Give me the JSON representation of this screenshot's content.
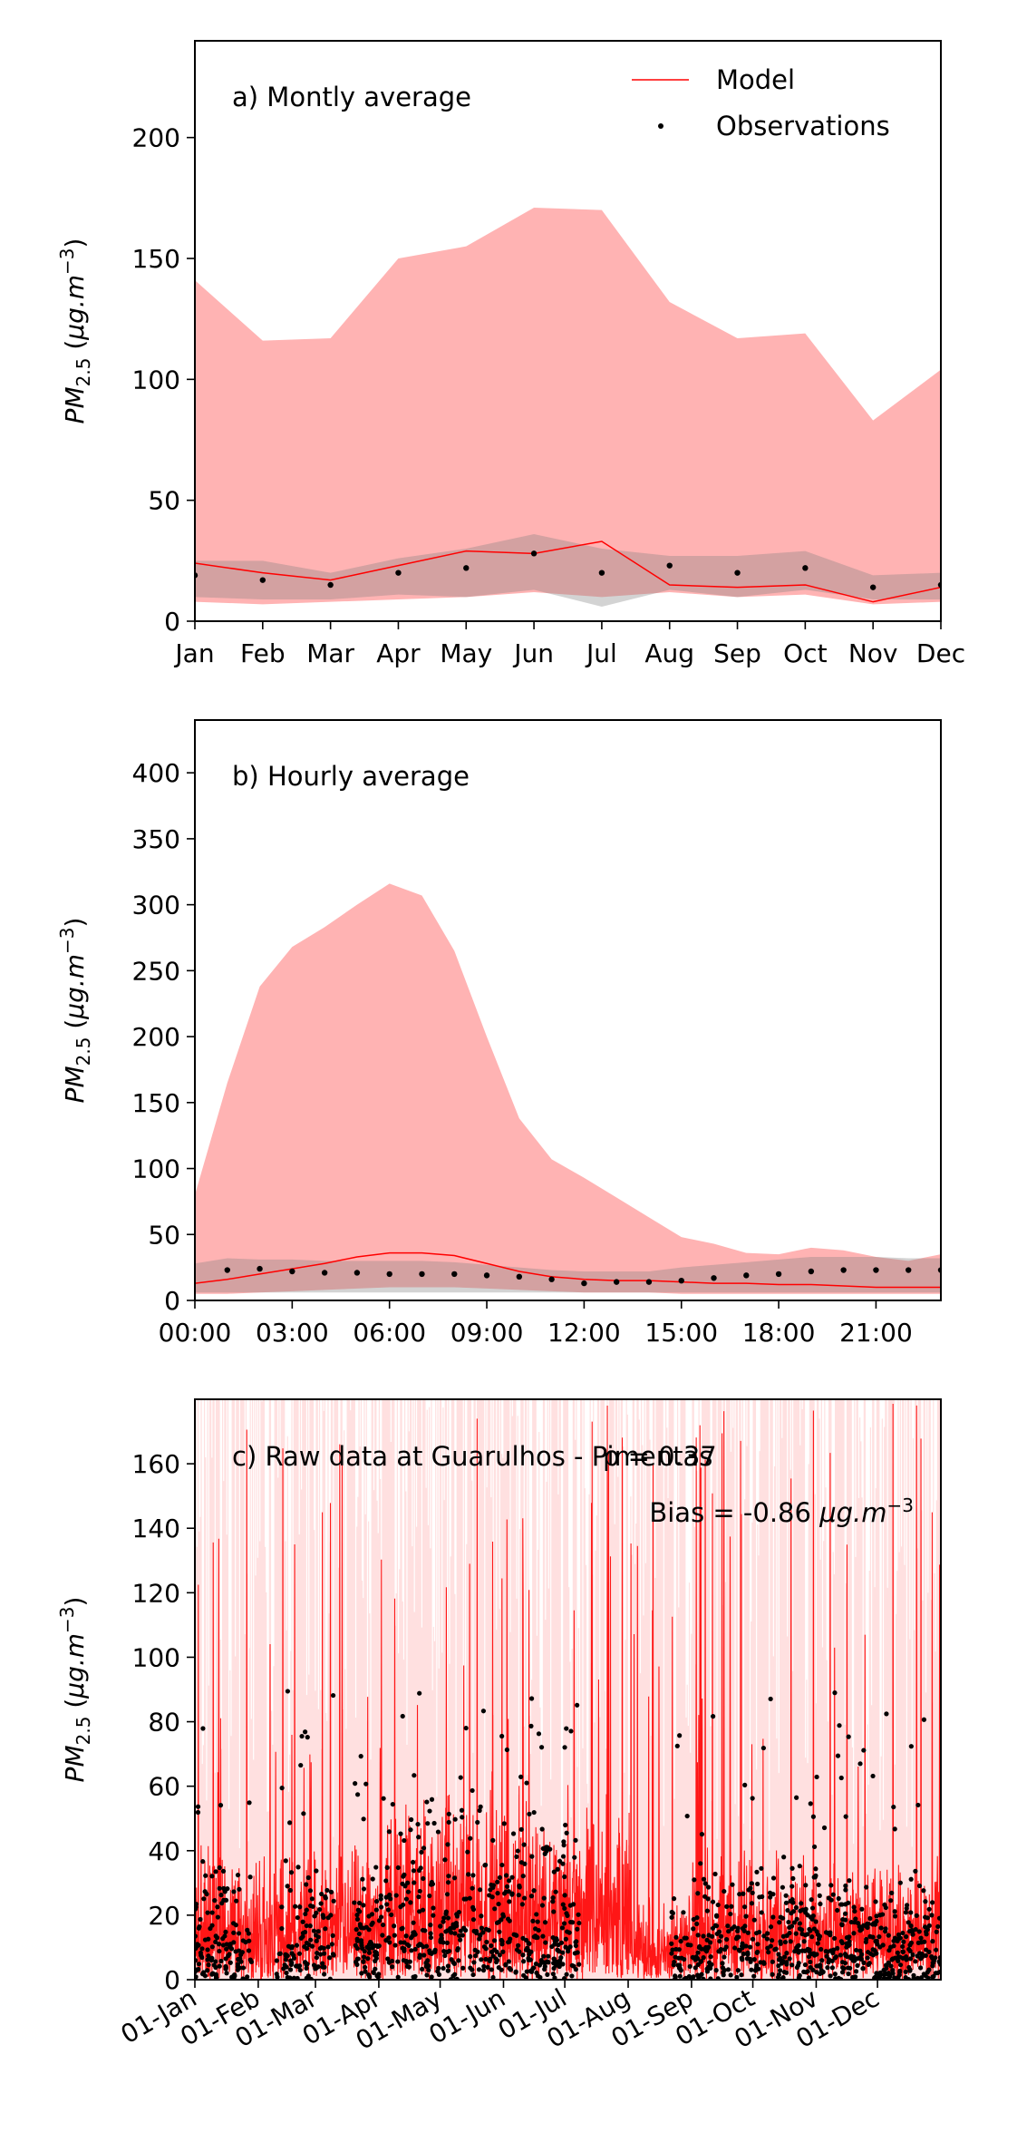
{
  "chart_data": [
    {
      "panel": "a",
      "type": "area",
      "title": "a) Montly average",
      "ylabel": "PM2.5 (μg.m−3)",
      "ylim": [
        0,
        240
      ],
      "yticks": [
        0,
        50,
        100,
        150,
        200
      ],
      "categories": [
        "Jan",
        "Feb",
        "Mar",
        "Apr",
        "May",
        "Jun",
        "Jul",
        "Aug",
        "Sep",
        "Oct",
        "Nov",
        "Dec"
      ],
      "legend": {
        "position": "top-right",
        "entries": [
          "Model",
          "Observations"
        ]
      },
      "series": [
        {
          "name": "Model",
          "kind": "line",
          "color": "#ff0000",
          "values": [
            24,
            20,
            17,
            23,
            29,
            28,
            33,
            15,
            14,
            15,
            8,
            14
          ]
        },
        {
          "name": "Observations",
          "kind": "scatter",
          "color": "#000000",
          "values": [
            19,
            17,
            15,
            20,
            22,
            28,
            20,
            23,
            20,
            22,
            14,
            15
          ]
        },
        {
          "kind": "band",
          "role": "model-range",
          "color": "#ffb3b3",
          "low": [
            8,
            7,
            8,
            9,
            10,
            12,
            10,
            12,
            10,
            11,
            7,
            8
          ],
          "high": [
            141,
            116,
            117,
            150,
            155,
            171,
            170,
            132,
            117,
            119,
            83,
            104
          ]
        },
        {
          "kind": "band",
          "role": "observation-range",
          "color": "#808080",
          "low": [
            10,
            9,
            9,
            11,
            10,
            13,
            6,
            13,
            10,
            13,
            9,
            9
          ],
          "high": [
            25,
            25,
            20,
            26,
            30,
            36,
            30,
            27,
            27,
            29,
            19,
            20
          ]
        }
      ]
    },
    {
      "panel": "b",
      "type": "area",
      "title": "b) Hourly average",
      "ylabel": "PM2.5 (μg.m−3)",
      "ylim": [
        0,
        440
      ],
      "yticks": [
        0,
        50,
        100,
        150,
        200,
        250,
        300,
        350,
        400
      ],
      "xlim": [
        0,
        23
      ],
      "xticks": [
        "00:00",
        "03:00",
        "06:00",
        "09:00",
        "12:00",
        "15:00",
        "18:00",
        "21:00"
      ],
      "xtick_hours": [
        0,
        3,
        6,
        9,
        12,
        15,
        18,
        21
      ],
      "hours": [
        0,
        1,
        2,
        3,
        4,
        5,
        6,
        7,
        8,
        9,
        10,
        11,
        12,
        13,
        14,
        15,
        16,
        17,
        18,
        19,
        20,
        21,
        22,
        23
      ],
      "series": [
        {
          "name": "Model",
          "kind": "line",
          "color": "#ff0000",
          "values": [
            13,
            16,
            20,
            24,
            28,
            33,
            36,
            36,
            34,
            28,
            22,
            18,
            16,
            15,
            15,
            14,
            13,
            13,
            12,
            12,
            11,
            10,
            10,
            10
          ]
        },
        {
          "name": "Observations",
          "kind": "scatter",
          "color": "#000000",
          "x": [
            1,
            2,
            3,
            4,
            5,
            6,
            7,
            8,
            9,
            10,
            11,
            12,
            13,
            14,
            15,
            16,
            17,
            18,
            19,
            20,
            21,
            22,
            23
          ],
          "values": [
            23,
            24,
            22,
            21,
            21,
            20,
            20,
            20,
            19,
            18,
            16,
            13,
            14,
            14,
            15,
            17,
            19,
            20,
            22,
            23,
            23,
            23,
            23
          ]
        },
        {
          "kind": "band",
          "role": "model-range",
          "color": "#ffb3b3",
          "low": [
            5,
            5,
            6,
            7,
            8,
            9,
            10,
            10,
            10,
            9,
            8,
            7,
            6,
            6,
            6,
            5,
            5,
            5,
            5,
            5,
            5,
            5,
            5,
            5
          ],
          "high": [
            80,
            165,
            238,
            268,
            283,
            300,
            316,
            307,
            265,
            200,
            138,
            107,
            93,
            78,
            63,
            48,
            43,
            36,
            35,
            40,
            38,
            33,
            30,
            35
          ]
        },
        {
          "kind": "band",
          "role": "observation-range",
          "color": "#808080",
          "low": [
            6,
            6,
            6,
            6,
            6,
            6,
            6,
            6,
            6,
            6,
            6,
            6,
            6,
            6,
            6,
            6,
            6,
            6,
            6,
            6,
            6,
            6,
            6,
            6
          ],
          "high": [
            28,
            32,
            31,
            31,
            30,
            30,
            30,
            30,
            29,
            27,
            25,
            23,
            22,
            22,
            22,
            25,
            27,
            29,
            31,
            33,
            33,
            33,
            32,
            32
          ]
        }
      ]
    },
    {
      "panel": "c",
      "type": "line",
      "title": "c) Raw data at Guarulhos - Pimentas",
      "annotations": [
        "ρ = 0.37",
        "Bias = -0.86 μg.m−3"
      ],
      "ylabel": "PM2.5 (μg.m−3)",
      "ylim": [
        0,
        180
      ],
      "yticks": [
        0,
        20,
        40,
        60,
        80,
        100,
        120,
        140,
        160
      ],
      "xlim_day_of_year": [
        0,
        365
      ],
      "xticks": [
        "01-Jan",
        "01-Feb",
        "01-Mar",
        "01-Apr",
        "01-May",
        "01-Jun",
        "01-Jul",
        "01-Aug",
        "01-Sep",
        "01-Oct",
        "01-Nov",
        "01-Dec"
      ],
      "xtick_day_of_year": [
        0,
        31,
        59,
        90,
        120,
        151,
        181,
        212,
        243,
        273,
        304,
        334
      ],
      "series": [
        {
          "name": "Model",
          "kind": "line",
          "color": "#ff0000",
          "note": "hourly model values, dense trace"
        },
        {
          "name": "Observations",
          "kind": "scatter",
          "color": "#000000",
          "note": "hourly observations; gap about mid-Jul to late Aug"
        }
      ],
      "observation_gaps": [
        [
          28,
          40
        ],
        [
          68,
          78
        ],
        [
          188,
          233
        ]
      ]
    }
  ]
}
